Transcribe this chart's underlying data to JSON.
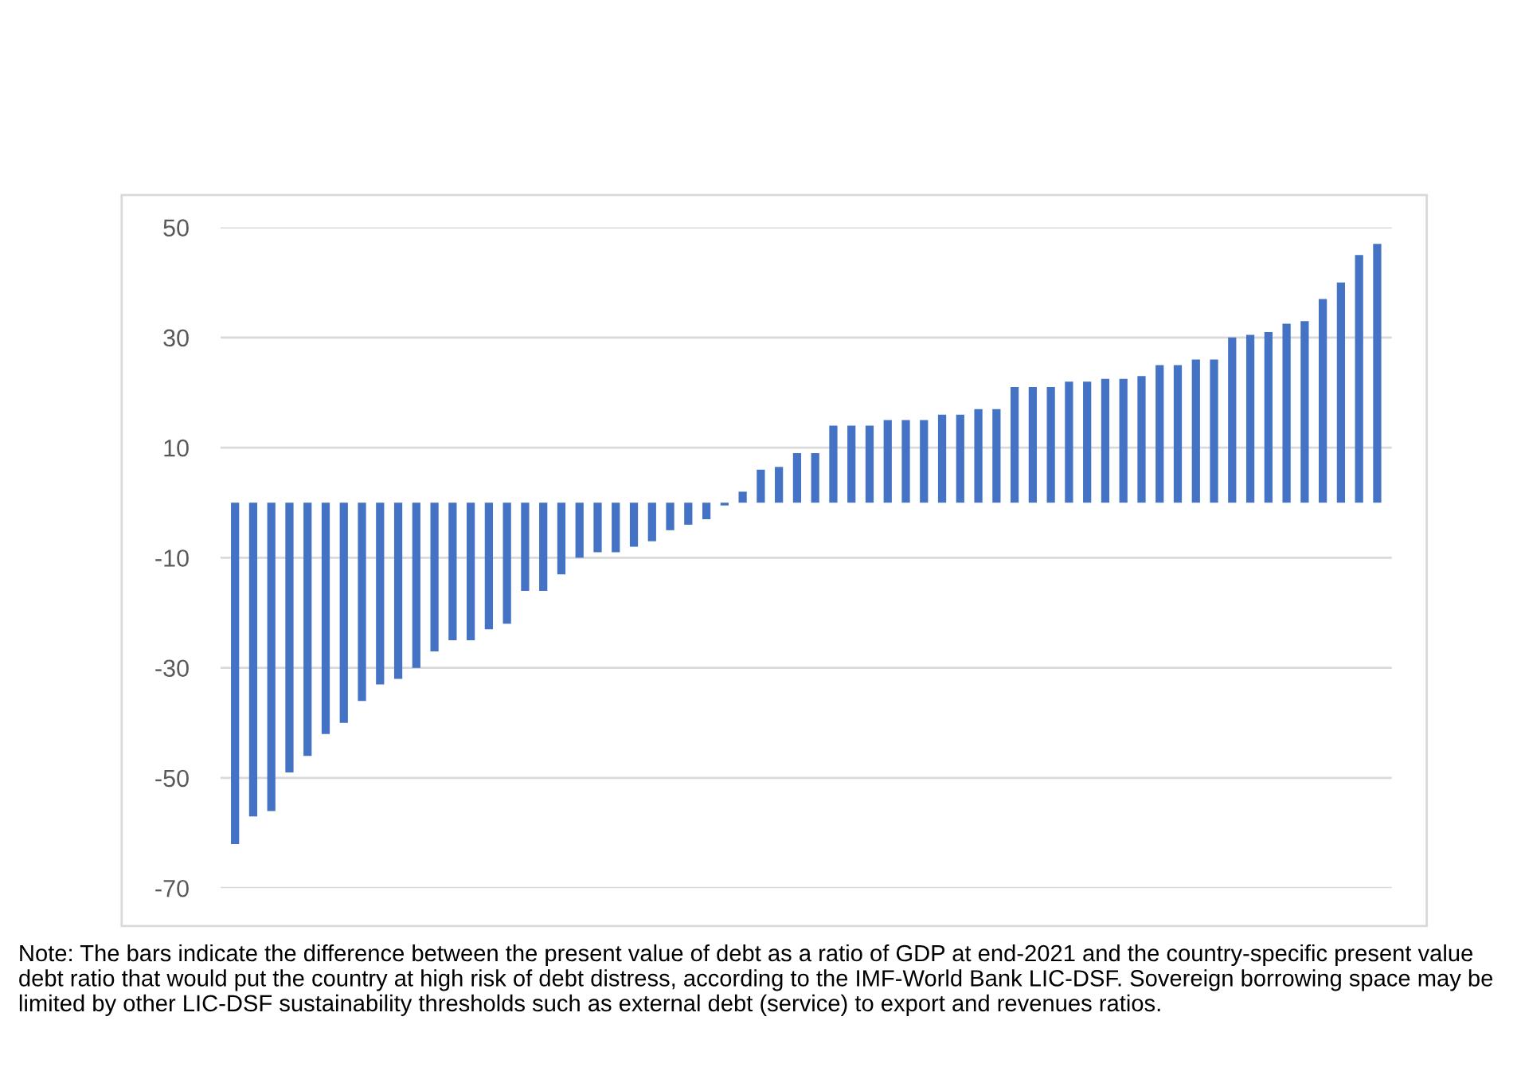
{
  "chart_data": {
    "type": "bar",
    "categories": [
      null,
      null,
      null,
      null,
      null,
      null,
      null,
      null,
      null,
      null,
      null,
      null,
      null,
      null,
      null,
      null,
      null,
      null,
      null,
      null,
      null,
      null,
      null,
      null,
      null,
      null,
      null,
      null,
      null,
      null,
      null,
      null,
      null,
      null,
      null,
      null,
      null,
      null,
      null,
      null,
      null,
      null,
      null,
      null,
      null,
      null,
      null,
      null,
      null,
      null,
      null,
      null,
      null,
      null,
      null,
      null,
      null,
      null,
      null,
      null,
      null,
      null,
      null,
      null
    ],
    "values": [
      -62,
      -57,
      -56,
      -49,
      -46,
      -42,
      -40,
      -36,
      -33,
      -32,
      -30,
      -27,
      -25,
      -25,
      -23,
      -22,
      -16,
      -16,
      -13,
      -10,
      -9,
      -9,
      -8,
      -7,
      -5,
      -4,
      -3,
      -0.5,
      2,
      6,
      6.5,
      9,
      9,
      14,
      14,
      14,
      15,
      15,
      15,
      16,
      16,
      17,
      17,
      21,
      21,
      21,
      22,
      22,
      22.5,
      22.5,
      23,
      25,
      25,
      26,
      26,
      30,
      30.5,
      31,
      32.5,
      33,
      37,
      40,
      45,
      47
    ],
    "color": "#4472c4",
    "ylim": [
      -70,
      50
    ],
    "yticks": [
      50,
      30,
      10,
      {
        "value": -10,
        "label": "-10"
      },
      {
        "value": -30,
        "label": "-30"
      },
      {
        "value": -50,
        "label": "-50"
      },
      {
        "value": -70,
        "label": "-70"
      }
    ],
    "grid": "y",
    "annotations": [
      "Note: The bars indicate the difference between the present value of debt as a ratio of GDP at end-2021 and the country-specific present value debt ratio that would put the country at high risk of debt distress, according to the IMF-World Bank LIC-DSF. Sovereign borrowing space may be limited by other LIC-DSF sustainability thresholds such as external debt (service) to export and revenues ratios."
    ]
  }
}
